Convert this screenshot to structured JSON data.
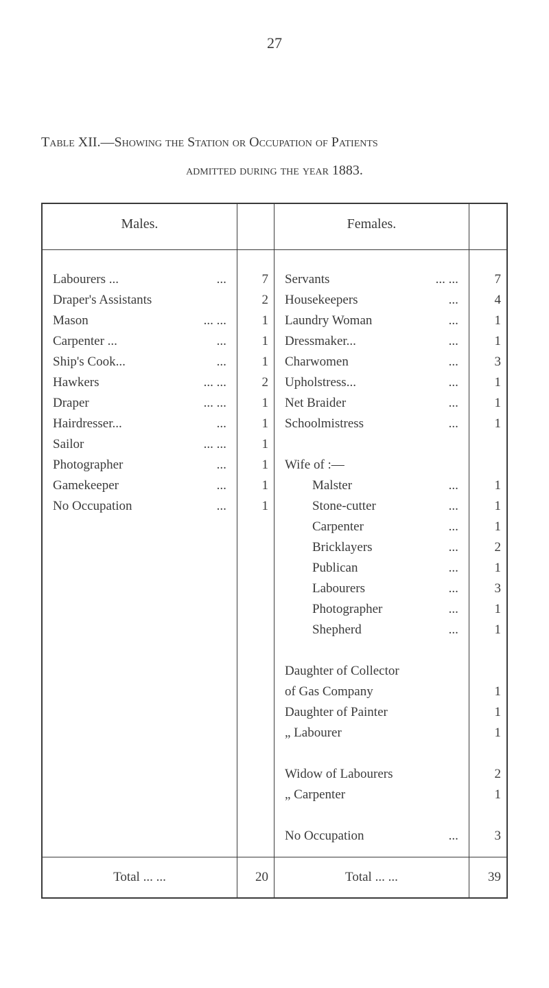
{
  "pageNumber": "27",
  "titleLine1": "Table XII.—Showing the Station or Occupation of Patients",
  "titleLine2": "admitted during the year 1883.",
  "headers": {
    "males": "Males.",
    "females": "Females."
  },
  "malesEntries": [
    {
      "label": "Labourers ...",
      "dots": "...",
      "value": "7"
    },
    {
      "label": "Draper's Assistants",
      "dots": "",
      "value": "2"
    },
    {
      "label": "Mason",
      "dots": "...   ...",
      "value": "1"
    },
    {
      "label": "Carpenter ...",
      "dots": "...",
      "value": "1"
    },
    {
      "label": "Ship's Cook...",
      "dots": "...",
      "value": "1"
    },
    {
      "label": "Hawkers",
      "dots": "...   ...",
      "value": "2"
    },
    {
      "label": "Draper",
      "dots": "...   ...",
      "value": "1"
    },
    {
      "label": "Hairdresser...",
      "dots": "...",
      "value": "1"
    },
    {
      "label": "Sailor",
      "dots": "...   ...",
      "value": "1"
    },
    {
      "label": "Photographer",
      "dots": "...",
      "value": "1"
    },
    {
      "label": "Gamekeeper",
      "dots": "...",
      "value": "1"
    },
    {
      "label": "No Occupation",
      "dots": "...",
      "value": "1"
    }
  ],
  "femalesSection1": [
    {
      "label": "Servants",
      "dots": "...   ...",
      "value": "7"
    },
    {
      "label": "Housekeepers",
      "dots": "...",
      "value": "4"
    },
    {
      "label": "Laundry Woman",
      "dots": "...",
      "value": "1"
    },
    {
      "label": "Dressmaker...",
      "dots": "...",
      "value": "1"
    },
    {
      "label": "Charwomen",
      "dots": "...",
      "value": "3"
    },
    {
      "label": "Upholstress...",
      "dots": "...",
      "value": "1"
    },
    {
      "label": "Net Braider",
      "dots": "...",
      "value": "1"
    },
    {
      "label": "Schoolmistress",
      "dots": "...",
      "value": "1"
    }
  ],
  "wifeOfHeader": "Wife of :—",
  "wifeOfEntries": [
    {
      "label": "Malster",
      "dots": "...",
      "value": "1"
    },
    {
      "label": "Stone-cutter",
      "dots": "...",
      "value": "1"
    },
    {
      "label": "Carpenter",
      "dots": "...",
      "value": "1"
    },
    {
      "label": "Bricklayers",
      "dots": "...",
      "value": "2"
    },
    {
      "label": "Publican",
      "dots": "...",
      "value": "1"
    },
    {
      "label": "Labourers",
      "dots": "...",
      "value": "3"
    },
    {
      "label": "Photographer",
      "dots": "...",
      "value": "1"
    },
    {
      "label": "Shepherd",
      "dots": "...",
      "value": "1"
    }
  ],
  "daughterEntries": [
    {
      "label": "Daughter of Collector",
      "value": ""
    },
    {
      "label": "    of Gas Company",
      "value": "1"
    },
    {
      "label": "Daughter of Painter",
      "value": "1"
    },
    {
      "label": "     „       Labourer",
      "value": "1"
    }
  ],
  "widowEntries": [
    {
      "label": "Widow of Labourers",
      "value": "2"
    },
    {
      "label": "     „      Carpenter",
      "value": "1"
    }
  ],
  "noOccupationFemale": {
    "label": "No Occupation",
    "dots": "...",
    "value": "3"
  },
  "totals": {
    "malesLabel": "Total ...      ...",
    "malesValue": "20",
    "femalesLabel": "Total ...    ...",
    "femalesValue": "39"
  },
  "styling": {
    "backgroundColor": "#ffffff",
    "textColor": "#3a3a3a",
    "borderColor": "#3a3a3a",
    "fontFamily": "Times New Roman",
    "bodyFontSize": 19,
    "titleFontSize": 20,
    "lineHeight": 30,
    "pageWidth": 800,
    "pageHeight": 1438,
    "columnWidths": {
      "males": "42%",
      "malesNum": "8%",
      "females": "42%",
      "femalesNum": "8%"
    }
  }
}
